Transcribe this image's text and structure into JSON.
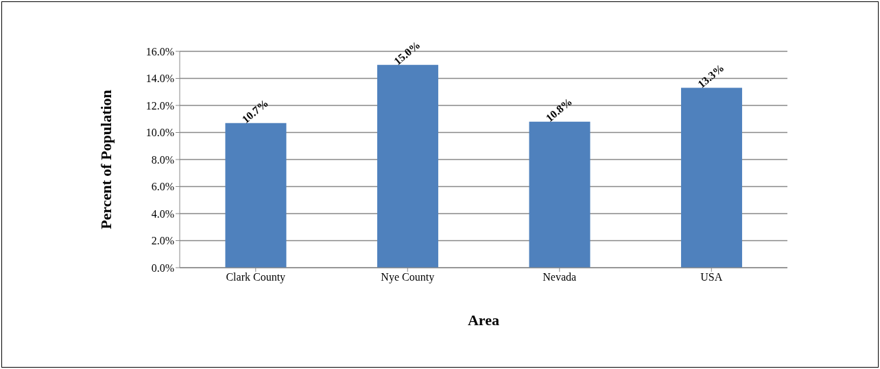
{
  "chart_data": {
    "type": "bar",
    "xlabel": "Area",
    "ylabel": "Percent of Population",
    "categories": [
      "Clark County",
      "Nye County",
      "Nevada",
      "USA"
    ],
    "values": [
      10.7,
      15.0,
      10.8,
      13.3
    ],
    "value_labels": [
      "10.7%",
      "15.0%",
      "10.8%",
      "13.3%"
    ],
    "color": "#4f81bd",
    "ylim": [
      0,
      16
    ],
    "yticks": [
      {
        "value": 0,
        "label": "0.0%"
      },
      {
        "value": 2,
        "label": "2.0%"
      },
      {
        "value": 4,
        "label": "4.0%"
      },
      {
        "value": 6,
        "label": "6.0%"
      },
      {
        "value": 8,
        "label": "8.0%"
      },
      {
        "value": 10,
        "label": "10.0%"
      },
      {
        "value": 12,
        "label": "12.0%"
      },
      {
        "value": 14,
        "label": "14.0%"
      },
      {
        "value": 16,
        "label": "16.0%"
      }
    ],
    "grid": "y",
    "legend": false
  }
}
